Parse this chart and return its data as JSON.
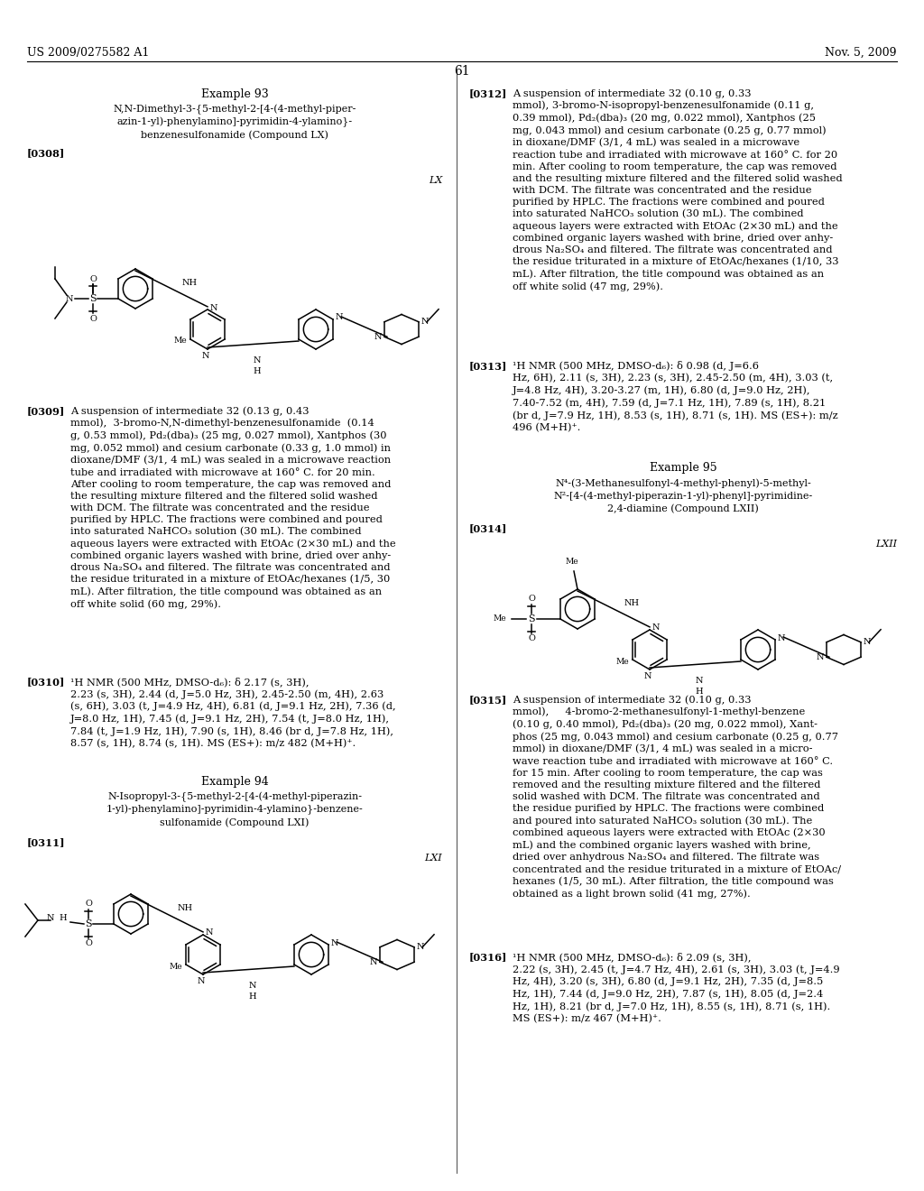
{
  "page_header_left": "US 2009/0275582 A1",
  "page_header_right": "Nov. 5, 2009",
  "page_number": "61",
  "background_color": "#ffffff"
}
